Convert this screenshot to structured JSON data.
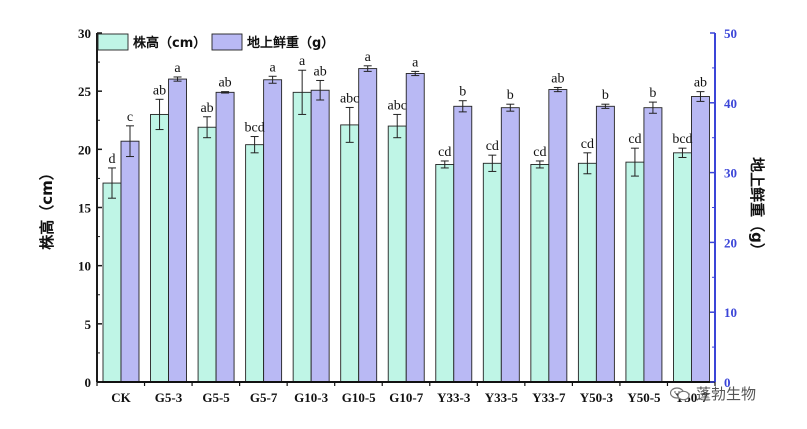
{
  "chart_data": {
    "type": "bar",
    "categories": [
      "CK",
      "G5-3",
      "G5-5",
      "G5-7",
      "G10-3",
      "G10-5",
      "G10-7",
      "Y33-3",
      "Y33-5",
      "Y33-7",
      "Y50-3",
      "Y50-5",
      "Y50-7"
    ],
    "ylabel_left": "株高（cm）",
    "ylabel_right": "地上鲜重（g）",
    "ylim_left": [
      0,
      30
    ],
    "ylim_right": [
      0,
      50
    ],
    "yticks_left": [
      "0",
      "5",
      "10",
      "15",
      "20",
      "25",
      "30"
    ],
    "yticks_right": [
      "0",
      "10",
      "20",
      "30",
      "40",
      "50"
    ],
    "legend_position": "top-left",
    "series": [
      {
        "name": "株高（cm）",
        "axis": "left",
        "color": "#bff5e6",
        "values": [
          17.1,
          23.0,
          21.9,
          20.4,
          24.9,
          22.1,
          22.0,
          18.7,
          18.8,
          18.7,
          18.8,
          18.9,
          19.7
        ],
        "errors": [
          1.3,
          1.3,
          0.9,
          0.7,
          1.9,
          1.5,
          1.0,
          0.3,
          0.7,
          0.3,
          0.9,
          1.2,
          0.4
        ],
        "labels": [
          "d",
          "ab",
          "ab",
          "bcd",
          "a",
          "abc",
          "abc",
          "cd",
          "cd",
          "cd",
          "cd",
          "cd",
          "bcd"
        ]
      },
      {
        "name": "地上鲜重（g）",
        "axis": "right",
        "color": "#b9b9f4",
        "values": [
          34.5,
          43.4,
          41.5,
          43.3,
          41.8,
          44.9,
          44.2,
          39.5,
          39.3,
          41.9,
          39.5,
          39.3,
          40.9
        ],
        "errors": [
          2.2,
          0.3,
          0.1,
          0.5,
          1.4,
          0.4,
          0.3,
          0.8,
          0.5,
          0.3,
          0.3,
          0.8,
          0.7
        ],
        "labels": [
          "c",
          "a",
          "ab",
          "a",
          "ab",
          "a",
          "a",
          "b",
          "b",
          "ab",
          "b",
          "b",
          "ab"
        ]
      }
    ]
  },
  "watermark": {
    "text": "蓬勃生物",
    "icon": "wechat-logo-icon"
  }
}
